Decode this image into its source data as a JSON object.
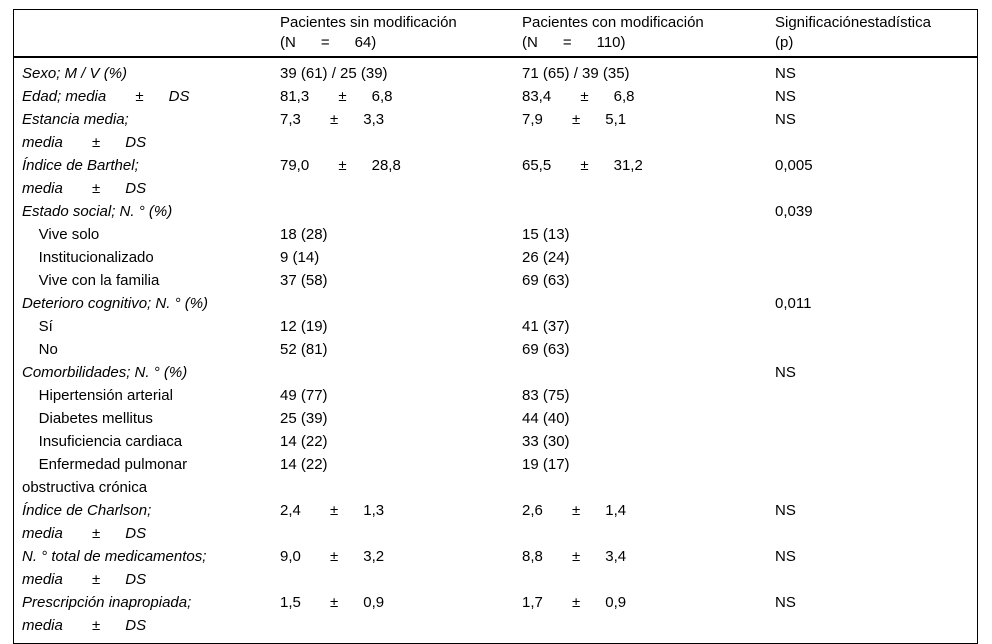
{
  "table": {
    "columns": [
      {
        "label": ""
      },
      {
        "label": "Pacientes sin modificación\n(N      =      64)"
      },
      {
        "label": "Pacientes con modificación\n(N      =      110)"
      },
      {
        "label": "Significaciónestadística\n(p)"
      }
    ],
    "rows": [
      {
        "label": "Sexo; M / V (%)",
        "italic": true,
        "c2": "39 (61) / 25 (39)",
        "c3": "71 (65) / 39 (35)",
        "p": "NS"
      },
      {
        "label": "Edad; media       ±      DS",
        "italic": true,
        "c2": "81,3       ±      6,8",
        "c3": "83,4       ±      6,8",
        "p": "NS"
      },
      {
        "label": "Estancia media;\nmedia       ±      DS",
        "italic": true,
        "c2": "7,3       ±      3,3",
        "c3": "7,9       ±      5,1",
        "p": "NS"
      },
      {
        "label": "Índice de Barthel;\nmedia       ±      DS",
        "italic": true,
        "c2": "79,0       ±      28,8",
        "c3": "65,5       ±      31,2",
        "p": "0,005"
      },
      {
        "label": "Estado social; N. ° (%)",
        "italic": true,
        "c2": "",
        "c3": "",
        "p": "0,039"
      },
      {
        "label": "    Vive solo",
        "italic": false,
        "c2": "18 (28)",
        "c3": "15 (13)",
        "p": ""
      },
      {
        "label": "    Institucionalizado",
        "italic": false,
        "c2": "9 (14)",
        "c3": "26 (24)",
        "p": ""
      },
      {
        "label": "    Vive con la familia",
        "italic": false,
        "c2": "37 (58)",
        "c3": "69 (63)",
        "p": ""
      },
      {
        "label": "Deterioro cognitivo; N. ° (%)",
        "italic": true,
        "c2": "",
        "c3": "",
        "p": "0,011"
      },
      {
        "label": "    Sí",
        "italic": false,
        "c2": "12 (19)",
        "c3": "41 (37)",
        "p": ""
      },
      {
        "label": "    No",
        "italic": false,
        "c2": "52 (81)",
        "c3": "69 (63)",
        "p": ""
      },
      {
        "label": "Comorbilidades; N. ° (%)",
        "italic": true,
        "c2": "",
        "c3": "",
        "p": "NS"
      },
      {
        "label": "    Hipertensión arterial",
        "italic": false,
        "c2": "49 (77)",
        "c3": "83 (75)",
        "p": ""
      },
      {
        "label": "    Diabetes mellitus",
        "italic": false,
        "c2": "25 (39)",
        "c3": "44 (40)",
        "p": ""
      },
      {
        "label": "    Insuficiencia cardiaca",
        "italic": false,
        "c2": "14 (22)",
        "c3": "33 (30)",
        "p": ""
      },
      {
        "label": "    Enfermedad pulmonar\nobstructiva crónica",
        "italic": false,
        "c2": "14 (22)",
        "c3": "19 (17)",
        "p": ""
      },
      {
        "label": "Índice de Charlson;\nmedia       ±      DS",
        "italic": true,
        "c2": "2,4       ±      1,3",
        "c3": "2,6       ±      1,4",
        "p": "NS"
      },
      {
        "label": "N. ° total de medicamentos;\nmedia       ±      DS",
        "italic": true,
        "c2": "9,0       ±      3,2",
        "c3": "8,8       ±      3,4",
        "p": "NS"
      },
      {
        "label": "Prescripción inapropiada;\nmedia       ±      DS",
        "italic": true,
        "c2": "1,5       ±      0,9",
        "c3": "1,7       ±      0,9",
        "p": "NS"
      }
    ]
  }
}
